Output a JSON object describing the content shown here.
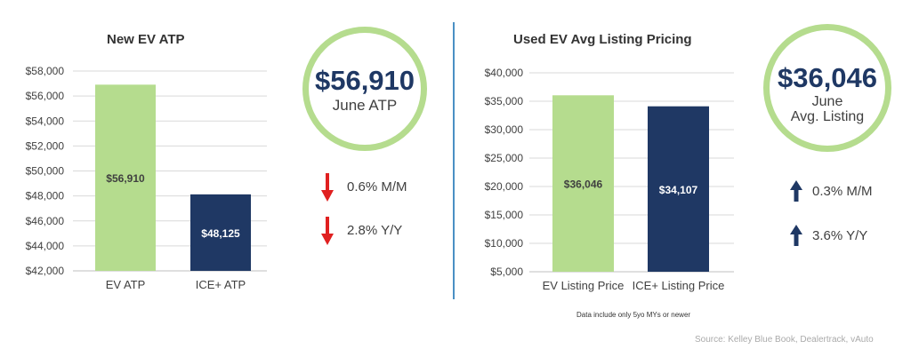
{
  "colors": {
    "ev": "#b5dc8e",
    "ice": "#1f3864",
    "arrow_down": "#e02020",
    "arrow_up": "#1f3864",
    "divider": "#4a90c4"
  },
  "left": {
    "title": "New EV ATP",
    "circle": {
      "value": "$56,910",
      "label": "June ATP"
    },
    "stats": [
      {
        "icon": "arrow-down-icon",
        "text": "0.6% M/M"
      },
      {
        "icon": "arrow-down-icon",
        "text": "2.8% Y/Y"
      }
    ]
  },
  "right": {
    "title": "Used EV Avg Listing Pricing",
    "circle": {
      "value": "$36,046",
      "label1": "June",
      "label2": "Avg. Listing"
    },
    "stats": [
      {
        "icon": "arrow-up-icon",
        "text": "0.3% M/M"
      },
      {
        "icon": "arrow-up-icon",
        "text": "3.6% Y/Y"
      }
    ],
    "note": "Data include only 5yo MYs or newer"
  },
  "source": "Source: Kelley Blue Book, Dealertrack, vAuto",
  "chart_data": [
    {
      "type": "bar",
      "title": "New EV ATP",
      "categories": [
        "EV ATP",
        "ICE+ ATP"
      ],
      "values": [
        56910,
        48125
      ],
      "data_labels": [
        "$56,910",
        "$48,125"
      ],
      "ylim": [
        42000,
        58000
      ],
      "yticks": [
        42000,
        44000,
        46000,
        48000,
        50000,
        52000,
        54000,
        56000,
        58000
      ],
      "ytick_labels": [
        "$42,000",
        "$44,000",
        "$46,000",
        "$48,000",
        "$50,000",
        "$52,000",
        "$54,000",
        "$56,000",
        "$58,000"
      ],
      "grid": true
    },
    {
      "type": "bar",
      "title": "Used EV Avg Listing Pricing",
      "categories": [
        "EV Listing Price",
        "ICE+ Listing Price"
      ],
      "values": [
        36046,
        34107
      ],
      "data_labels": [
        "$36,046",
        "$34,107"
      ],
      "ylim": [
        5000,
        40000
      ],
      "yticks": [
        5000,
        10000,
        15000,
        20000,
        25000,
        30000,
        35000,
        40000
      ],
      "ytick_labels": [
        "$5,000",
        "$10,000",
        "$15,000",
        "$20,000",
        "$25,000",
        "$30,000",
        "$35,000",
        "$40,000"
      ],
      "grid": true
    }
  ]
}
